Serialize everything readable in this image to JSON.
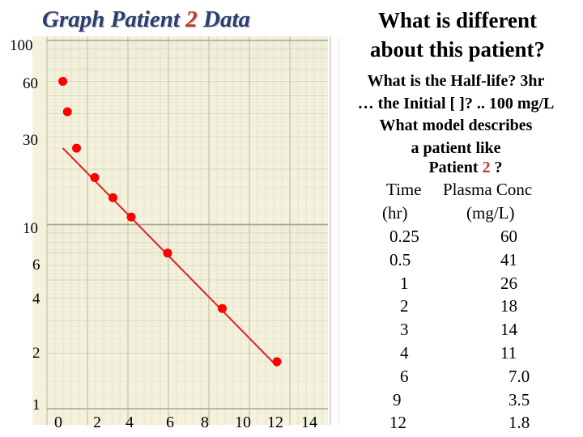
{
  "title": {
    "prefix": "Graph Patient ",
    "number": "2",
    "suffix": " Data"
  },
  "questions": {
    "heading_line1": "What is different",
    "heading_line2": "about this patient?",
    "half_life": "What is the Half-life? 3hr",
    "initial": "… the Initial [ ]? .. 100 mg/L",
    "model_line1": "What model describes",
    "model_line2": "a patient like",
    "model_line3_prefix": "Patient ",
    "model_line3_number": "2",
    "model_line3_suffix": " ?"
  },
  "table": {
    "headers": [
      "Time",
      "Plasma Conc"
    ],
    "units": [
      "(hr)",
      "(mg/L)"
    ],
    "rows": [
      [
        "0.25",
        "60"
      ],
      [
        "0.5",
        "41"
      ],
      [
        "1",
        "26"
      ],
      [
        "2",
        "18"
      ],
      [
        "3",
        "14"
      ],
      [
        "4",
        "11"
      ],
      [
        "6",
        "7.0"
      ],
      [
        "9",
        "3.5"
      ],
      [
        "12",
        "1.8"
      ]
    ]
  },
  "chart_data": {
    "type": "scatter",
    "title": "Graph Patient 2 Data",
    "xlabel": "",
    "ylabel": "",
    "yscale": "log",
    "xlim": [
      0,
      14
    ],
    "ylim": [
      1,
      100
    ],
    "x_ticks": [
      "0",
      "2",
      "4",
      "6",
      "8",
      "10",
      "12",
      "14"
    ],
    "y_ticks": [
      "1",
      "2",
      "4",
      "6",
      "10",
      "30",
      "60",
      "100"
    ],
    "points": [
      {
        "x": 0.25,
        "y": 60
      },
      {
        "x": 0.5,
        "y": 41
      },
      {
        "x": 1,
        "y": 26
      },
      {
        "x": 2,
        "y": 18
      },
      {
        "x": 3,
        "y": 14
      },
      {
        "x": 4,
        "y": 11
      },
      {
        "x": 6,
        "y": 7.0
      },
      {
        "x": 9,
        "y": 3.5
      },
      {
        "x": 12,
        "y": 1.8
      }
    ],
    "fit_line": [
      {
        "x": 0.25,
        "y": 26
      },
      {
        "x": 12,
        "y": 1.7
      }
    ],
    "grid": true,
    "marker_color": "#ff0000",
    "line_color": "#e02020",
    "paper_color": "#f4f2dc"
  }
}
